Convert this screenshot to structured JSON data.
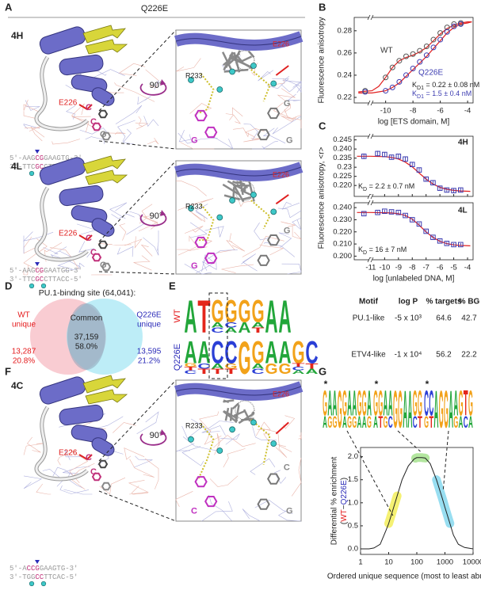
{
  "panel_a": {
    "label": "A",
    "header": "Q226E",
    "h": {
      "name": "4H",
      "residue": "E226",
      "bases": [
        "C",
        "C",
        "G"
      ],
      "inset_residues": [
        "R233",
        "E226"
      ],
      "inset_bases": [
        "G",
        "G",
        "G"
      ],
      "rotation": "90°",
      "seq_top": [
        "5'-AAG",
        "CG",
        "GAAGTG-3'"
      ],
      "seq_bottom": [
        "3'-TTC",
        "GC",
        "CTTCAC-5'"
      ]
    },
    "l": {
      "name": "4L",
      "residue": "E226",
      "bases": [
        "C",
        "C",
        "G"
      ],
      "inset_residues": [
        "R233",
        "E226"
      ],
      "inset_bases": [
        "G",
        "G"
      ],
      "rotation": "90°",
      "seq_top": [
        "5'-AAG",
        "CG",
        "GAATGG-3'"
      ],
      "seq_bottom": [
        "3'-TTC",
        "GC",
        "CTTACC-5'"
      ]
    }
  },
  "panel_f": {
    "label": "F",
    "name": "4C",
    "residue": "E226",
    "bases": [
      "C",
      "C"
    ],
    "inset_residues": [
      "R233",
      "E226"
    ],
    "inset_bases": [
      "C",
      "C",
      "G"
    ],
    "rotation": "90°",
    "seq_top": [
      "5'-A",
      "CCG",
      "GAAGTG-3'"
    ],
    "seq_bottom": [
      "3'-TGG",
      "CC",
      "TTCAC-5'"
    ]
  },
  "panel_d": {
    "label": "D",
    "title": "PU.1-bindng site (64,041):",
    "wt": [
      "WT",
      "unique"
    ],
    "wt_counts": [
      "13,287",
      "20.8%"
    ],
    "common": "Common",
    "common_counts": [
      "37,159",
      "58.0%"
    ],
    "q": [
      "Q226E",
      "unique"
    ],
    "q_counts": [
      "13,595",
      "21.2%"
    ],
    "colors": [
      "#f4a3ad",
      "#86def0"
    ]
  },
  "panel_e": {
    "label": "E",
    "logos": [
      {
        "name": "WT",
        "color": "#e41a1c",
        "columns": [
          "A",
          "T",
          "GAC",
          "GCA",
          "GA",
          "GAT",
          "A",
          "A"
        ]
      },
      {
        "name": "Q226E",
        "color": "#2b2bb8",
        "columns": [
          "AGTC",
          "ACT",
          "CAT",
          "CGT",
          "G",
          "GAC",
          "AG",
          "AG",
          "GTCA",
          "CTA"
        ]
      }
    ],
    "table": {
      "header": [
        "Motif",
        "log P",
        "% targets",
        "% BG"
      ],
      "rows": [
        [
          "PU.1-like",
          "-5 x 10³",
          "64.6",
          "42.7"
        ],
        [
          "ETV4-like",
          "-1 x 10⁴",
          "56.2",
          "22.2"
        ]
      ]
    }
  },
  "panel_g": {
    "label": "G",
    "logos": [
      {
        "mark": "*",
        "columns": [
          "GA",
          "AG",
          "AG",
          "G",
          "GA",
          "AG",
          "AG",
          "GA",
          "GA",
          "AG"
        ]
      },
      {
        "mark": "*",
        "columns": [
          "GA",
          "GT",
          "AG",
          "AC",
          "G",
          "G",
          "A",
          "A",
          "GC",
          "GT"
        ]
      },
      {
        "mark": "*",
        "columns": [
          "CG",
          "CT",
          "A",
          "G",
          "G",
          "A",
          "AG",
          "GA",
          "TC",
          "GA"
        ]
      }
    ]
  },
  "logo_colors": {
    "A": "#22a63a",
    "C": "#2b3fd6",
    "G": "#f2a21a",
    "T": "#e4261c"
  },
  "chart_data": [
    {
      "type": "scatter",
      "label": "B",
      "ylabel": "Fluorescence anisotropy",
      "xlabel": "log [ETS domain, M]",
      "x_break": true,
      "xlim": [
        -12.3,
        -3.6
      ],
      "ylim": [
        0.215,
        0.292
      ],
      "xticks": [
        -10,
        -8,
        -6,
        -4
      ],
      "yticks": [
        0.22,
        0.24,
        0.26,
        0.28
      ],
      "series": [
        {
          "mode": "lines",
          "color": "#e02020",
          "x": [
            -12,
            -11,
            -10.5,
            -10,
            -9.5,
            -9,
            -8.5,
            -8,
            -7.5,
            -7,
            -6.5,
            -6,
            -5.5,
            -5,
            -4.5,
            -4,
            -3.7
          ],
          "values": [
            0.225,
            0.226,
            0.23,
            0.238,
            0.247,
            0.253,
            0.256,
            0.258,
            0.261,
            0.265,
            0.271,
            0.277,
            0.282,
            0.285,
            0.287,
            0.288,
            0.288
          ]
        },
        {
          "mode": "lines",
          "color": "#e02020",
          "x": [
            -12,
            -11,
            -10.5,
            -10,
            -9.5,
            -9,
            -8.5,
            -8,
            -7.5,
            -7,
            -6.5,
            -6,
            -5.5,
            -5,
            -4.5,
            -4,
            -3.7
          ],
          "values": [
            0.224,
            0.224,
            0.225,
            0.226,
            0.229,
            0.233,
            0.239,
            0.245,
            0.251,
            0.257,
            0.264,
            0.271,
            0.278,
            0.283,
            0.286,
            0.287,
            0.288
          ]
        },
        {
          "mode": "markers",
          "marker": "circle",
          "color": "#555555",
          "x": [
            -11.5,
            -10,
            -9.5,
            -9,
            -8.5,
            -8,
            -7.5,
            -7,
            -6.5,
            -6,
            -5.5,
            -5,
            -4.5
          ],
          "values": [
            0.226,
            0.238,
            0.247,
            0.253,
            0.257,
            0.259,
            0.262,
            0.266,
            0.272,
            0.278,
            0.283,
            0.286,
            0.287
          ]
        },
        {
          "mode": "markers",
          "marker": "circle",
          "color": "#3b3bb0",
          "x": [
            -11.5,
            -10,
            -9.5,
            -9,
            -8.5,
            -8,
            -7.5,
            -7,
            -6.5,
            -6,
            -5.5,
            -5,
            -4.5
          ],
          "values": [
            0.225,
            0.226,
            0.229,
            0.234,
            0.24,
            0.246,
            0.252,
            0.258,
            0.265,
            0.272,
            0.279,
            0.284,
            0.286
          ]
        }
      ],
      "annotations": [
        {
          "text": "WT",
          "color": "#333333"
        },
        {
          "text": "Q226E",
          "color": "#3b3bb0"
        },
        {
          "parts": [
            "K",
            "D1",
            " = 0.22 ± 0.08 nM"
          ],
          "color": "#222222"
        },
        {
          "parts": [
            "K",
            "D1",
            " = 1.5 ± 0.4 nM"
          ],
          "color": "#3b3bb0"
        }
      ]
    },
    {
      "type": "scatter",
      "label": "C",
      "ylabel": "Fluorescence anisotropy, <r>",
      "x_break": true,
      "xlim": [
        -12.2,
        -3.6
      ],
      "ylim": [
        0.214,
        0.247
      ],
      "yticks": [
        0.245,
        {
          "value": 0.24,
          "label": "0.240"
        },
        0.235,
        0.23,
        0.225,
        {
          "value": 0.22,
          "label": "0.220"
        }
      ],
      "series": [
        {
          "mode": "lines",
          "color": "#e02020",
          "x": [
            -12,
            -11,
            -10,
            -9.5,
            -9,
            -8.5,
            -8,
            -7.5,
            -7,
            -6.5,
            -6,
            -5.5,
            -5,
            -4.5,
            -3.8
          ],
          "values": [
            0.236,
            0.236,
            0.2358,
            0.2354,
            0.2345,
            0.2328,
            0.2302,
            0.2268,
            0.2235,
            0.2208,
            0.219,
            0.2179,
            0.2173,
            0.217,
            0.2168
          ]
        },
        {
          "mode": "markers",
          "marker": "square",
          "color": "#3b3bb0",
          "x": [
            -11.5,
            -10.5,
            -10,
            -9.5,
            -9,
            -8.5,
            -8,
            -7.5,
            -7,
            -6.5,
            -6,
            -5.5,
            -5,
            -4.5
          ],
          "values": [
            0.236,
            0.2375,
            0.237,
            0.2355,
            0.236,
            0.2345,
            0.2315,
            0.2285,
            0.2235,
            0.2215,
            0.2185,
            0.2175,
            0.2172,
            0.2175
          ],
          "errors": [
            0.0015,
            0.0015,
            0.0012,
            0.0012,
            0.001,
            0.001,
            0.0012,
            0.0012,
            0.001,
            0.001,
            0.001,
            0.001,
            0.001,
            0.001
          ]
        }
      ],
      "annotations": [
        {
          "text": "4H",
          "color": "#222222"
        },
        {
          "parts": [
            "K",
            "D",
            " = 2.2 ± 0.7 nM"
          ],
          "color": "#222222"
        }
      ]
    },
    {
      "type": "scatter",
      "xlabel": "log [unlabeled DNA, M]",
      "x_break": true,
      "xlim": [
        -12.2,
        -3.6
      ],
      "ylim": [
        0.197,
        0.244
      ],
      "xticks": [
        -11,
        -10,
        -9,
        -8,
        -7,
        -6,
        -5,
        -4
      ],
      "yticks": [
        {
          "value": 0.24,
          "label": "0.240"
        },
        {
          "value": 0.23,
          "label": "0.230"
        },
        {
          "value": 0.22,
          "label": "0.220"
        },
        {
          "value": 0.21,
          "label": "0.210"
        },
        {
          "value": 0.2,
          "label": "0.200"
        }
      ],
      "series": [
        {
          "mode": "lines",
          "color": "#e02020",
          "x": [
            -12,
            -11,
            -10,
            -9.5,
            -9,
            -8.5,
            -8,
            -7.5,
            -7,
            -6.5,
            -6,
            -5.5,
            -5,
            -4.5,
            -3.8
          ],
          "values": [
            0.236,
            0.236,
            0.2358,
            0.2356,
            0.235,
            0.2335,
            0.2305,
            0.2255,
            0.22,
            0.2155,
            0.2122,
            0.2103,
            0.2093,
            0.2088,
            0.2085
          ]
        },
        {
          "mode": "markers",
          "marker": "square",
          "color": "#3b3bb0",
          "x": [
            -11.5,
            -10.5,
            -10,
            -9.5,
            -9,
            -8.5,
            -8,
            -7.5,
            -7,
            -6.5,
            -6,
            -5.5,
            -5,
            -4.5
          ],
          "values": [
            0.235,
            0.236,
            0.237,
            0.2365,
            0.236,
            0.2335,
            0.23,
            0.2265,
            0.2205,
            0.2155,
            0.2125,
            0.2105,
            0.2095,
            0.2095
          ],
          "errors": [
            0.0012,
            0.0012,
            0.0012,
            0.0012,
            0.0012,
            0.0012,
            0.0012,
            0.0012,
            0.0012,
            0.0012,
            0.0012,
            0.0012,
            0.0012,
            0.0012
          ]
        }
      ],
      "annotations": [
        {
          "text": "4L",
          "color": "#222222"
        },
        {
          "parts": [
            "K",
            "D",
            " = 16 ± 7 nM"
          ],
          "color": "#222222"
        }
      ]
    },
    {
      "type": "line",
      "log_x": true,
      "ylabel": "Differential % enrichment",
      "ylabel_parts": [
        "(",
        "WT",
        "−",
        "Q226E",
        ")"
      ],
      "ylabel_colors": [
        "#222222",
        "#e41a1c",
        "#222222",
        "#2b2bb8",
        "#222222"
      ],
      "xlabel": "Ordered unique sequence (most to least abundant)",
      "xlim": [
        1,
        10000
      ],
      "ylim": [
        -0.12,
        2.2
      ],
      "xticks": [
        1,
        10,
        100,
        1000,
        10000
      ],
      "yticks": [
        {
          "value": 0,
          "label": "0.0"
        },
        0.5,
        {
          "value": 1,
          "label": "1.0"
        },
        1.5,
        {
          "value": 2,
          "label": "2.0"
        }
      ],
      "series": [
        {
          "mode": "lines",
          "color": "#222222",
          "x": [
            1,
            2,
            3,
            5,
            8,
            10,
            15,
            20,
            30,
            50,
            80,
            100,
            150,
            200,
            300,
            500,
            800,
            1000,
            1500,
            2000,
            3000,
            5000,
            10000
          ],
          "values": [
            0,
            0,
            0.02,
            0.1,
            0.4,
            0.55,
            0.9,
            1.15,
            1.5,
            1.8,
            1.95,
            1.98,
            1.98,
            1.97,
            1.85,
            1.5,
            1.1,
            0.9,
            0.55,
            0.3,
            0.1,
            0.03,
            0
          ]
        }
      ],
      "highlights": [
        {
          "xrange": [
            10,
            20
          ],
          "color": "#f3ee5a"
        },
        {
          "xrange": [
            90,
            200
          ],
          "color": "#a6e28e"
        },
        {
          "xrange": [
            500,
            1500
          ],
          "color": "#86d8ee"
        }
      ]
    }
  ]
}
